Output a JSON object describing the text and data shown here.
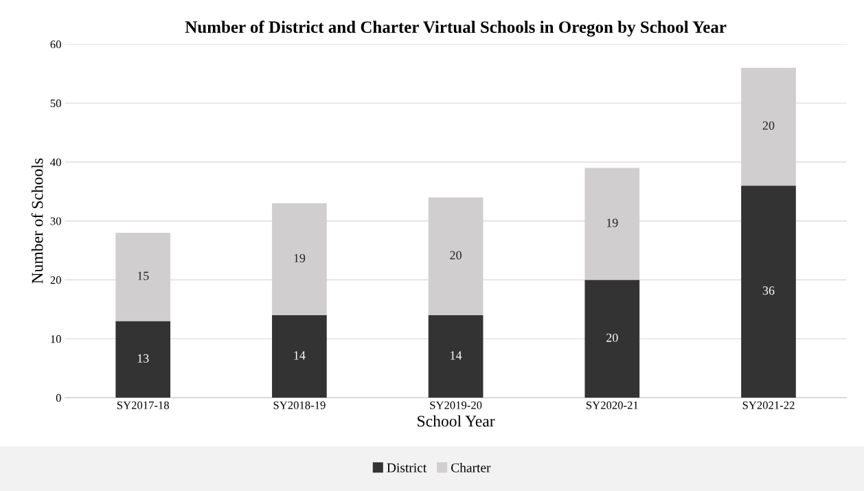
{
  "chart_data": {
    "type": "bar",
    "title": "Number of District and Charter Virtual Schools in Oregon by School Year",
    "xlabel": "School Year",
    "ylabel": "Number of Schools",
    "categories": [
      "SY2017-18",
      "SY2018-19",
      "SY2019-20",
      "SY2020-21",
      "SY2021-22"
    ],
    "series": [
      {
        "name": "District",
        "color": "#333333",
        "values": [
          13,
          14,
          14,
          20,
          36
        ]
      },
      {
        "name": "Charter",
        "color": "#d0cecf",
        "values": [
          15,
          19,
          20,
          19,
          20
        ]
      }
    ],
    "stacked": true,
    "data_labels": true,
    "ylim": [
      0,
      60
    ],
    "yticks": [
      0,
      10,
      20,
      30,
      40,
      50,
      60
    ],
    "grid": "y",
    "legend": "bottom"
  }
}
